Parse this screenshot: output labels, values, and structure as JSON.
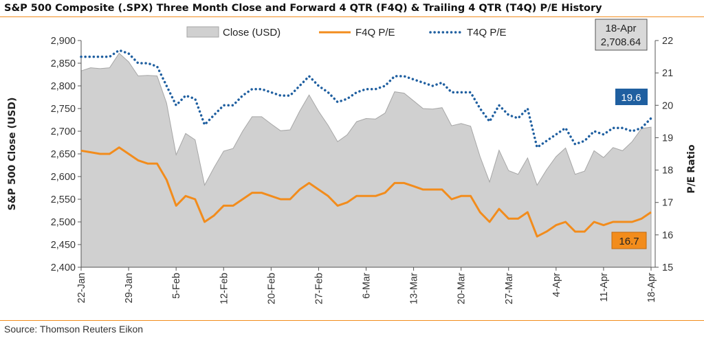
{
  "title": "S&P 500 Composite (.SPX) Three Month Close and Forward 4 QTR (F4Q) & Trailing 4 QTR (T4Q) P/E History",
  "source": "Source: Thomson Reuters Eikon",
  "colors": {
    "area_fill": "#d0d0d0",
    "area_stroke": "#a6a6a6",
    "f4q": "#f28c1c",
    "t4q": "#1f5fa0",
    "rule": "#f28c1c",
    "callout_box": "#d9d9d9"
  },
  "callouts": {
    "last_close_date": "18-Apr",
    "last_close_value": "2,708.64",
    "t4q_last": "19.6",
    "f4q_last": "16.7"
  },
  "chart_data": {
    "type": "area",
    "title": "S&P 500 Composite (.SPX) Three Month Close and Forward 4 QTR (F4Q) & Trailing 4 QTR (T4Q) P/E History",
    "xlabel": "",
    "ylabel": "S&P 500 Close (USD)",
    "y2label": "P/E Ratio",
    "ylim": [
      2400,
      2900
    ],
    "y_ticks": [
      "2,400",
      "2,450",
      "2,500",
      "2,550",
      "2,600",
      "2,650",
      "2,700",
      "2,750",
      "2,800",
      "2,850",
      "2,900"
    ],
    "y2lim": [
      15,
      22
    ],
    "y2_ticks": [
      "15",
      "16",
      "17",
      "18",
      "19",
      "20",
      "21",
      "22"
    ],
    "x_tick_labels": [
      "22-Jan",
      "29-Jan",
      "5-Feb",
      "12-Feb",
      "20-Feb",
      "27-Feb",
      "6-Mar",
      "13-Mar",
      "20-Mar",
      "27-Mar",
      "4-Apr",
      "11-Apr",
      "18-Apr"
    ],
    "x_tick_positions": [
      0,
      5,
      10,
      15,
      20,
      25,
      30,
      35,
      40,
      45,
      50,
      55,
      60
    ],
    "legend": [
      "Close (USD)",
      "F4Q P/E",
      "T4Q P/E"
    ],
    "legend_position": "top",
    "grid": false,
    "series": [
      {
        "name": "Close (USD)",
        "type": "area",
        "axis": "left",
        "values": [
          2833,
          2840,
          2838,
          2840,
          2872,
          2853,
          2822,
          2823,
          2822,
          2762,
          2648,
          2695,
          2681,
          2581,
          2620,
          2656,
          2662,
          2700,
          2732,
          2732,
          2716,
          2701,
          2703,
          2744,
          2780,
          2744,
          2713,
          2677,
          2692,
          2721,
          2728,
          2727,
          2740,
          2787,
          2784,
          2767,
          2750,
          2749,
          2752,
          2712,
          2717,
          2711,
          2644,
          2588,
          2658,
          2613,
          2605,
          2641,
          2581,
          2615,
          2644,
          2663,
          2605,
          2612,
          2657,
          2642,
          2664,
          2657,
          2677,
          2706,
          2709
        ]
      },
      {
        "name": "F4Q P/E",
        "type": "line",
        "axis": "right",
        "values": [
          18.6,
          18.55,
          18.5,
          18.5,
          18.7,
          18.5,
          18.3,
          18.2,
          18.2,
          17.7,
          16.9,
          17.2,
          17.1,
          16.4,
          16.6,
          16.9,
          16.9,
          17.1,
          17.3,
          17.3,
          17.2,
          17.1,
          17.1,
          17.4,
          17.6,
          17.4,
          17.2,
          16.9,
          17.0,
          17.2,
          17.2,
          17.2,
          17.3,
          17.6,
          17.6,
          17.5,
          17.4,
          17.4,
          17.4,
          17.1,
          17.2,
          17.2,
          16.7,
          16.4,
          16.8,
          16.5,
          16.5,
          16.7,
          15.95,
          16.1,
          16.3,
          16.4,
          16.1,
          16.1,
          16.4,
          16.3,
          16.4,
          16.4,
          16.4,
          16.5,
          16.7
        ]
      },
      {
        "name": "T4Q P/E",
        "type": "line",
        "axis": "right",
        "values": [
          21.5,
          21.5,
          21.5,
          21.5,
          21.7,
          21.6,
          21.3,
          21.3,
          21.2,
          20.6,
          20.0,
          20.3,
          20.2,
          19.4,
          19.7,
          20.0,
          20.0,
          20.3,
          20.5,
          20.5,
          20.4,
          20.3,
          20.3,
          20.6,
          20.9,
          20.6,
          20.4,
          20.1,
          20.2,
          20.4,
          20.5,
          20.5,
          20.6,
          20.9,
          20.9,
          20.8,
          20.7,
          20.6,
          20.7,
          20.4,
          20.4,
          20.4,
          19.9,
          19.5,
          20.0,
          19.7,
          19.6,
          19.9,
          18.7,
          18.9,
          19.1,
          19.3,
          18.8,
          18.9,
          19.2,
          19.1,
          19.3,
          19.3,
          19.2,
          19.3,
          19.6
        ]
      }
    ]
  }
}
